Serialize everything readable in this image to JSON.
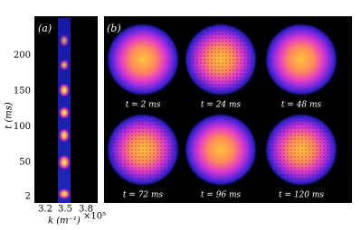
{
  "panel_a": {
    "label": "(a)",
    "y_label": "t (ms)",
    "y_ticks": [
      200,
      150,
      100,
      50,
      2
    ],
    "x_label": "k (m⁻¹)",
    "x_ticks": [
      "3.2",
      "3.5",
      "3.8"
    ],
    "x_multiplier": "×10⁵"
  },
  "panel_b": {
    "label": "(b)",
    "captions": [
      "t = 2 ms",
      "t = 24 ms",
      "t = 48 ms",
      "t = 72 ms",
      "t = 96 ms",
      "t = 120 ms"
    ]
  }
}
